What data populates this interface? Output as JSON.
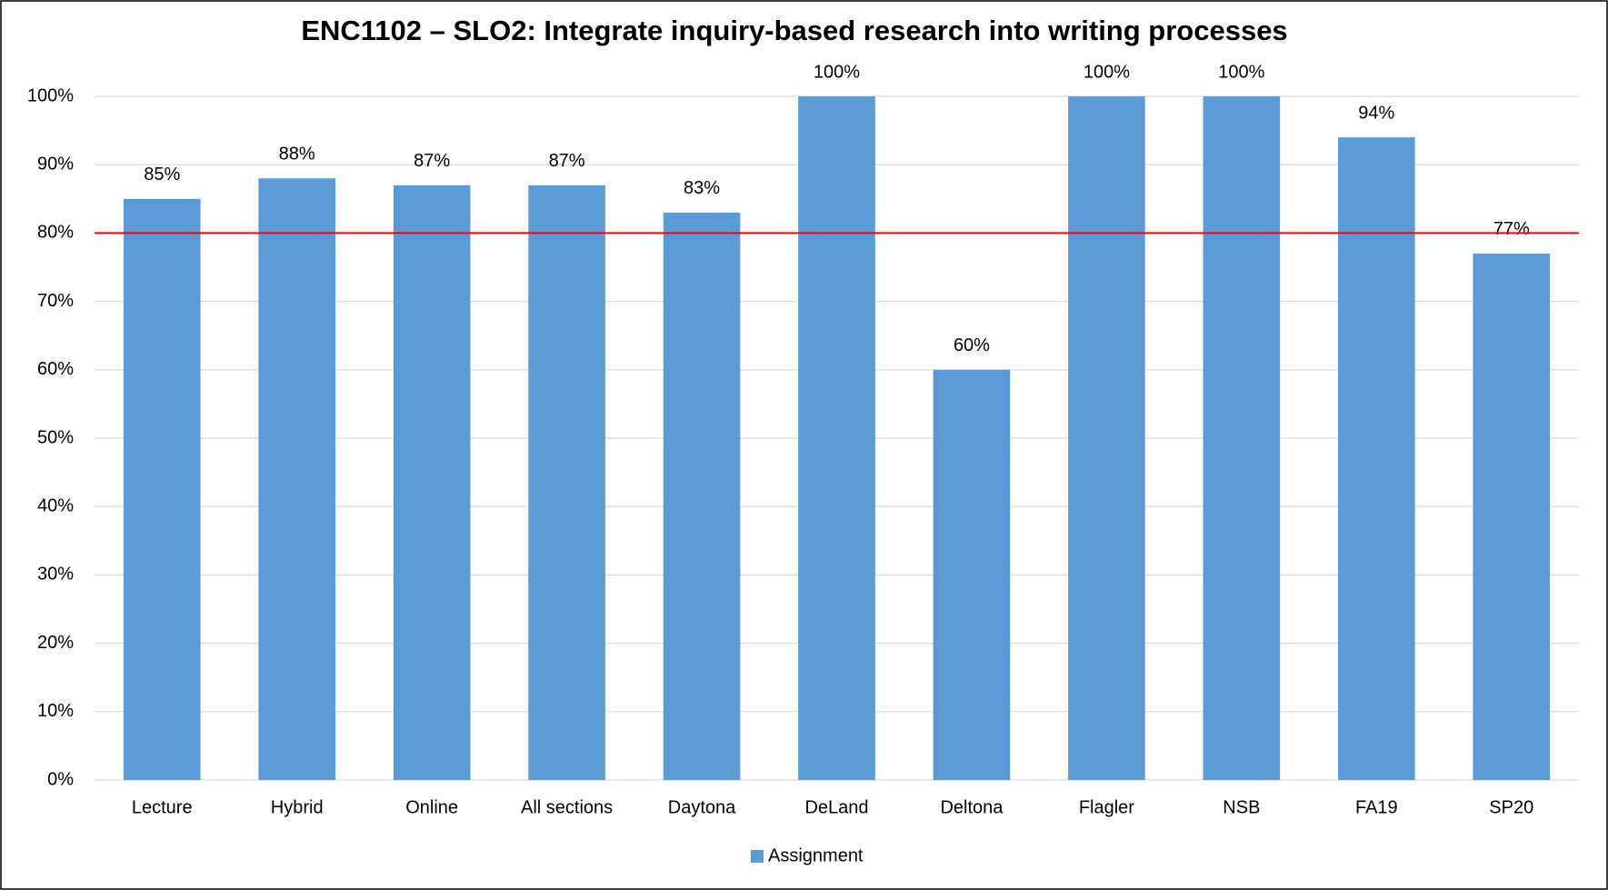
{
  "chart_data": {
    "type": "bar",
    "title": "ENC1102 – SLO2: Integrate inquiry-based research into writing processes",
    "categories": [
      "Lecture",
      "Hybrid",
      "Online",
      "All sections",
      "Daytona",
      "DeLand",
      "Deltona",
      "Flagler",
      "NSB",
      "FA19",
      "SP20"
    ],
    "series": [
      {
        "name": "Assignment",
        "color": "#5b9bd5",
        "values": [
          85,
          88,
          87,
          87,
          83,
          100,
          60,
          100,
          100,
          94,
          77
        ],
        "value_labels": [
          "85%",
          "88%",
          "87%",
          "87%",
          "83%",
          "100%",
          "60%",
          "100%",
          "100%",
          "94%",
          "77%"
        ]
      }
    ],
    "ylim": [
      0,
      100
    ],
    "yticks": [
      {
        "value": 0,
        "label": "0%"
      },
      {
        "value": 10,
        "label": "10%"
      },
      {
        "value": 20,
        "label": "20%"
      },
      {
        "value": 30,
        "label": "30%"
      },
      {
        "value": 40,
        "label": "40%"
      },
      {
        "value": 50,
        "label": "50%"
      },
      {
        "value": 60,
        "label": "60%"
      },
      {
        "value": 70,
        "label": "70%"
      },
      {
        "value": 80,
        "label": "80%"
      },
      {
        "value": 90,
        "label": "90%"
      },
      {
        "value": 100,
        "label": "100%"
      }
    ],
    "grid": true,
    "target_line": {
      "value": 80,
      "color": "#ff0000"
    },
    "legend": "bottom"
  }
}
